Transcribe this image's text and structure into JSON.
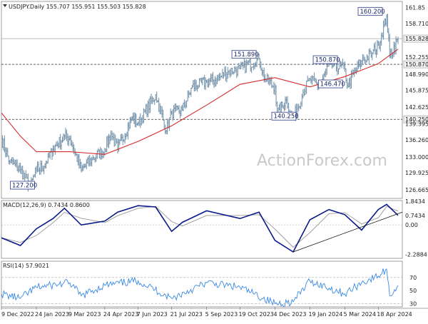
{
  "chart_data": [
    {
      "type": "candlestick",
      "header": "USDJPY.Daily  155.707 155.951 155.503 155.828",
      "watermark": "ActionForex.com",
      "ylim": [
        125,
        163
      ],
      "ytick_labels": [
        "161.85",
        "158.710",
        "155.828",
        "152.255",
        "150.870",
        "148.990",
        "145.875",
        "142.625",
        "140.250",
        "139.395",
        "136.260",
        "133.000",
        "129.925",
        "126.665"
      ],
      "yticks": [
        161.85,
        158.71,
        155.828,
        152.255,
        150.87,
        148.99,
        145.875,
        142.625,
        140.25,
        139.395,
        136.26,
        133.0,
        129.925,
        126.665
      ],
      "xtick_labels": [
        "9 Dec 2022",
        "24 Jan 2023",
        "9 Mar 2023",
        "24 Apr 2023",
        "7 Jun 2023",
        "21 Jul 2023",
        "5 Sep 2023",
        "19 Oct 2023",
        "4 Dec 2023",
        "19 Jan 2024",
        "5 Mar 2024",
        "18 Apr 2024"
      ],
      "horizontal_levels": [
        {
          "value": 155.828,
          "label": "155.828",
          "style": "solid"
        },
        {
          "value": 150.87,
          "label": "150.870",
          "style": "dashed"
        },
        {
          "value": 140.25,
          "label": "140.250",
          "style": "dashed"
        }
      ],
      "price_annotations": [
        {
          "label": "160.200",
          "value": 160.2,
          "date": "29 Apr 2024"
        },
        {
          "label": "151.890",
          "value": 151.89,
          "date": "13 Nov 2023"
        },
        {
          "label": "150.870",
          "value": 150.87,
          "date": "13 Feb 2024"
        },
        {
          "label": "146.470",
          "value": 146.47,
          "date": "1 Feb 2024"
        },
        {
          "label": "140.250",
          "value": 140.25,
          "date": "28 Dec 2023"
        },
        {
          "label": "127.200",
          "value": 127.2,
          "date": "16 Jan 2023"
        }
      ],
      "price_path": [
        {
          "date": "9 Dec 2022",
          "value": 136.5
        },
        {
          "date": "20 Dec 2022",
          "value": 132.0
        },
        {
          "date": "3 Jan 2023",
          "value": 130.5
        },
        {
          "date": "16 Jan 2023",
          "value": 127.2
        },
        {
          "date": "24 Jan 2023",
          "value": 130.5
        },
        {
          "date": "3 Feb 2023",
          "value": 131.2
        },
        {
          "date": "15 Feb 2023",
          "value": 134.5
        },
        {
          "date": "2 Mar 2023",
          "value": 137.0
        },
        {
          "date": "9 Mar 2023",
          "value": 136.5
        },
        {
          "date": "24 Mar 2023",
          "value": 130.5
        },
        {
          "date": "7 Apr 2023",
          "value": 132.5
        },
        {
          "date": "24 Apr 2023",
          "value": 134.5
        },
        {
          "date": "2 May 2023",
          "value": 137.5
        },
        {
          "date": "11 May 2023",
          "value": 134.5
        },
        {
          "date": "30 May 2023",
          "value": 140.5
        },
        {
          "date": "7 Jun 2023",
          "value": 139.5
        },
        {
          "date": "30 Jun 2023",
          "value": 145.0
        },
        {
          "date": "14 Jul 2023",
          "value": 138.0
        },
        {
          "date": "21 Jul 2023",
          "value": 141.5
        },
        {
          "date": "4 Aug 2023",
          "value": 142.0
        },
        {
          "date": "17 Aug 2023",
          "value": 146.5
        },
        {
          "date": "5 Sep 2023",
          "value": 147.5
        },
        {
          "date": "19 Sep 2023",
          "value": 148.0
        },
        {
          "date": "3 Oct 2023",
          "value": 149.5
        },
        {
          "date": "19 Oct 2023",
          "value": 150.0
        },
        {
          "date": "13 Nov 2023",
          "value": 151.89
        },
        {
          "date": "21 Nov 2023",
          "value": 148.0
        },
        {
          "date": "4 Dec 2023",
          "value": 146.5
        },
        {
          "date": "7 Dec 2023",
          "value": 141.5
        },
        {
          "date": "19 Dec 2023",
          "value": 144.0
        },
        {
          "date": "28 Dec 2023",
          "value": 140.25
        },
        {
          "date": "10 Jan 2024",
          "value": 145.5
        },
        {
          "date": "19 Jan 2024",
          "value": 148.0
        },
        {
          "date": "1 Feb 2024",
          "value": 146.47
        },
        {
          "date": "13 Feb 2024",
          "value": 150.87
        },
        {
          "date": "5 Mar 2024",
          "value": 150.0
        },
        {
          "date": "8 Mar 2024",
          "value": 146.8
        },
        {
          "date": "27 Mar 2024",
          "value": 151.5
        },
        {
          "date": "10 Apr 2024",
          "value": 153.0
        },
        {
          "date": "18 Apr 2024",
          "value": 154.5
        },
        {
          "date": "29 Apr 2024",
          "value": 160.2
        },
        {
          "date": "3 May 2024",
          "value": 152.5
        },
        {
          "date": "14 May 2024",
          "value": 155.828
        }
      ],
      "moving_average_path": [
        {
          "date": "9 Dec 2022",
          "value": 141.5
        },
        {
          "date": "3 Jan 2023",
          "value": 137.0
        },
        {
          "date": "24 Jan 2023",
          "value": 134.0
        },
        {
          "date": "9 Mar 2023",
          "value": 134.0
        },
        {
          "date": "24 Apr 2023",
          "value": 133.5
        },
        {
          "date": "7 Jun 2023",
          "value": 136.0
        },
        {
          "date": "21 Jul 2023",
          "value": 139.0
        },
        {
          "date": "5 Sep 2023",
          "value": 143.0
        },
        {
          "date": "19 Oct 2023",
          "value": 147.0
        },
        {
          "date": "4 Dec 2023",
          "value": 148.3
        },
        {
          "date": "19 Jan 2024",
          "value": 146.5
        },
        {
          "date": "5 Mar 2024",
          "value": 148.5
        },
        {
          "date": "18 Apr 2024",
          "value": 151.0
        },
        {
          "date": "14 May 2024",
          "value": 153.8
        }
      ],
      "watermark_color": "#c9c9c9",
      "price_color": "#6f8fa8",
      "ma_color": "#d62a2a"
    },
    {
      "type": "line",
      "header": "MACD(12,26,9) 0.7434 0.8600",
      "ylim": [
        -2.6,
        1.9
      ],
      "ytick_labels": [
        "1.8434",
        "0.7434",
        "0.00",
        "-2.2884"
      ],
      "yticks": [
        1.8434,
        0.7434,
        0.0,
        -2.2884
      ],
      "macd_path": [
        {
          "date": "9 Dec 2022",
          "value": -1.0
        },
        {
          "date": "3 Jan 2023",
          "value": -1.6
        },
        {
          "date": "24 Jan 2023",
          "value": -0.3
        },
        {
          "date": "15 Feb 2023",
          "value": 0.5
        },
        {
          "date": "2 Mar 2023",
          "value": 1.3
        },
        {
          "date": "24 Mar 2023",
          "value": 0.0
        },
        {
          "date": "24 Apr 2023",
          "value": 0.3
        },
        {
          "date": "11 May 2023",
          "value": 1.0
        },
        {
          "date": "7 Jun 2023",
          "value": 1.5
        },
        {
          "date": "30 Jun 2023",
          "value": 1.4
        },
        {
          "date": "21 Jul 2023",
          "value": -0.5
        },
        {
          "date": "4 Aug 2023",
          "value": 0.2
        },
        {
          "date": "5 Sep 2023",
          "value": 1.1
        },
        {
          "date": "19 Oct 2023",
          "value": 0.5
        },
        {
          "date": "13 Nov 2023",
          "value": 1.0
        },
        {
          "date": "4 Dec 2023",
          "value": -1.2
        },
        {
          "date": "28 Dec 2023",
          "value": -2.1
        },
        {
          "date": "19 Jan 2024",
          "value": 0.4
        },
        {
          "date": "13 Feb 2024",
          "value": 1.2
        },
        {
          "date": "5 Mar 2024",
          "value": 0.8
        },
        {
          "date": "27 Mar 2024",
          "value": -0.4
        },
        {
          "date": "18 Apr 2024",
          "value": 1.2
        },
        {
          "date": "29 Apr 2024",
          "value": 1.6
        },
        {
          "date": "14 May 2024",
          "value": 0.7434
        }
      ],
      "trendline": [
        {
          "date": "28 Dec 2023",
          "value": -2.1
        },
        {
          "date": "14 May 2024",
          "value": 1.0
        }
      ],
      "macd_color": "#0a1a8a",
      "signal_color": "#999999"
    },
    {
      "type": "line",
      "header": "RSI(14) 57.9021",
      "ylim": [
        25,
        95
      ],
      "ytick_labels": [
        "70",
        "50",
        "30"
      ],
      "yticks": [
        70,
        50,
        30
      ],
      "rsi_path": [
        {
          "date": "9 Dec 2022",
          "value": 45
        },
        {
          "date": "3 Jan 2023",
          "value": 38
        },
        {
          "date": "24 Jan 2023",
          "value": 55
        },
        {
          "date": "9 Mar 2023",
          "value": 62
        },
        {
          "date": "24 Mar 2023",
          "value": 42
        },
        {
          "date": "24 Apr 2023",
          "value": 58
        },
        {
          "date": "7 Jun 2023",
          "value": 65
        },
        {
          "date": "21 Jul 2023",
          "value": 38
        },
        {
          "date": "5 Sep 2023",
          "value": 62
        },
        {
          "date": "19 Oct 2023",
          "value": 55
        },
        {
          "date": "4 Dec 2023",
          "value": 30
        },
        {
          "date": "28 Dec 2023",
          "value": 33
        },
        {
          "date": "19 Jan 2024",
          "value": 65
        },
        {
          "date": "5 Mar 2024",
          "value": 45
        },
        {
          "date": "27 Mar 2024",
          "value": 62
        },
        {
          "date": "18 Apr 2024",
          "value": 72
        },
        {
          "date": "29 Apr 2024",
          "value": 83
        },
        {
          "date": "3 May 2024",
          "value": 42
        },
        {
          "date": "14 May 2024",
          "value": 57.9021
        }
      ],
      "rsi_color": "#3a8ae6"
    }
  ]
}
